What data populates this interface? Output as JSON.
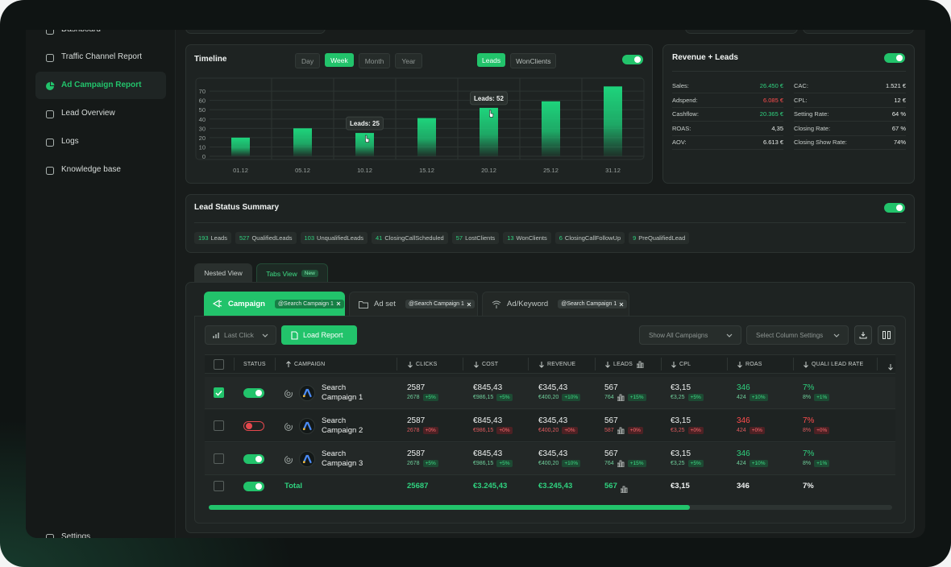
{
  "sidebar": {
    "items": [
      {
        "label": "Dashboard"
      },
      {
        "label": "Traffic Channel Report"
      },
      {
        "label": "Ad Campaign Report",
        "active": true
      },
      {
        "label": "Lead Overview"
      },
      {
        "label": "Logs"
      },
      {
        "label": "Knowledge base"
      },
      {
        "label": "Settings"
      }
    ]
  },
  "timeline": {
    "title": "Timeline",
    "ranges": [
      {
        "label": "Day"
      },
      {
        "label": "Week",
        "active": true
      },
      {
        "label": "Month"
      },
      {
        "label": "Year"
      }
    ],
    "metrics": [
      {
        "label": "Leads",
        "active": true
      },
      {
        "label": "WonClients"
      }
    ],
    "toggle": true
  },
  "chart_data": {
    "type": "bar",
    "categories": [
      "01.12",
      "05.12",
      "10.12",
      "15.12",
      "20.12",
      "25.12",
      "31.12"
    ],
    "values": [
      20,
      30,
      25,
      41,
      52,
      59,
      75
    ],
    "value_labels": [
      null,
      null,
      "Leads: 25",
      null,
      "Leads: 52",
      null,
      null
    ],
    "color": "#1ed47c",
    "ylim": [
      0,
      77
    ],
    "yticks": [
      0,
      10,
      20,
      30,
      40,
      50,
      60,
      70
    ],
    "grid": true
  },
  "revenue": {
    "title": "Revenue + Leads",
    "toggle": true,
    "left": [
      {
        "label": "Sales:",
        "value": "26.450 €",
        "tone": "up"
      },
      {
        "label": "Adspend:",
        "value": "6.085 €",
        "tone": "down"
      },
      {
        "label": "Cashflow:",
        "value": "20.365 €",
        "tone": "up"
      },
      {
        "label": "ROAS:",
        "value": "4,35"
      },
      {
        "label": "AOV:",
        "value": "6.613 €"
      }
    ],
    "right": [
      {
        "label": "CAC:",
        "value": "1.521 €"
      },
      {
        "label": "CPL:",
        "value": "12 €"
      },
      {
        "label": "Setting Rate:",
        "value": "64 %"
      },
      {
        "label": "Closing Rate:",
        "value": "67 %"
      },
      {
        "label": "Closing Show Rate:",
        "value": "74%"
      }
    ]
  },
  "lead_status": {
    "title": "Lead Status Summary",
    "toggle": true,
    "chips": [
      {
        "count": 193,
        "label": "Leads"
      },
      {
        "count": 527,
        "label": "QualifiedLeads"
      },
      {
        "count": 103,
        "label": "UnqualifiedLeads"
      },
      {
        "count": 41,
        "label": "ClosingCallScheduled"
      },
      {
        "count": 57,
        "label": "LostClients"
      },
      {
        "count": 13,
        "label": "WonClients"
      },
      {
        "count": 6,
        "label": "ClosingCallFollowUp"
      },
      {
        "count": 9,
        "label": "PreQualifiedLead"
      }
    ]
  },
  "views": [
    {
      "label": "Nested View"
    },
    {
      "label": "Tabs View",
      "badge": "New",
      "active": true
    }
  ],
  "entity_tabs": [
    {
      "label": "Campaign",
      "filter": "@Search Campaign 1",
      "active": true
    },
    {
      "label": "Ad set",
      "filter": "@Search Campaign 1"
    },
    {
      "label": "Ad/Keyword",
      "filter": "@Search Campaign 1"
    }
  ],
  "toolbar": {
    "attribution": "Last Click",
    "load": "Load Report",
    "campaign_filter": "Show All Campaigns",
    "columns": "Select Column Settings"
  },
  "table": {
    "headers": [
      "STATUS",
      "CAMPAIGN",
      "CLICKS",
      "COST",
      "REVENUE",
      "LEADS",
      "CPL",
      "ROAS",
      "QUALI LEAD RATE"
    ],
    "rows": [
      {
        "name": "Search Campaign 1",
        "selected": true,
        "active": true,
        "trend": "up",
        "cells": [
          [
            "2587",
            "2678",
            "+5%"
          ],
          [
            "€845,43",
            "€986,15",
            "+5%"
          ],
          [
            "€345,43",
            "€400,20",
            "+10%"
          ],
          [
            "567",
            "764",
            "+15%"
          ],
          [
            "€3,15",
            "€3,25",
            "+5%"
          ],
          [
            "346",
            "424",
            "+10%"
          ],
          [
            "7%",
            "8%",
            "+1%"
          ]
        ]
      },
      {
        "name": "Search Campaign 2",
        "selected": false,
        "active": false,
        "trend": "down",
        "cells": [
          [
            "2587",
            "2678",
            "+0%"
          ],
          [
            "€845,43",
            "€986,15",
            "+0%"
          ],
          [
            "€345,43",
            "€400,20",
            "+0%"
          ],
          [
            "567",
            "587",
            "+0%"
          ],
          [
            "€3,15",
            "€3,25",
            "+0%"
          ],
          [
            "346",
            "424",
            "+0%"
          ],
          [
            "7%",
            "8%",
            "+0%"
          ]
        ]
      },
      {
        "name": "Search Campaign 3",
        "selected": false,
        "active": true,
        "trend": "up",
        "cells": [
          [
            "2587",
            "2678",
            "+5%"
          ],
          [
            "€845,43",
            "€986,15",
            "+5%"
          ],
          [
            "€345,43",
            "€400,20",
            "+10%"
          ],
          [
            "567",
            "764",
            "+15%"
          ],
          [
            "€3,15",
            "€3,25",
            "+5%"
          ],
          [
            "346",
            "424",
            "+10%"
          ],
          [
            "7%",
            "8%",
            "+1%"
          ]
        ]
      }
    ],
    "total": {
      "label": "Total",
      "active": true,
      "values": [
        "25687",
        "€3.245,43",
        "€3.245,43",
        "567",
        "€3,15",
        "346",
        "7%"
      ]
    }
  }
}
